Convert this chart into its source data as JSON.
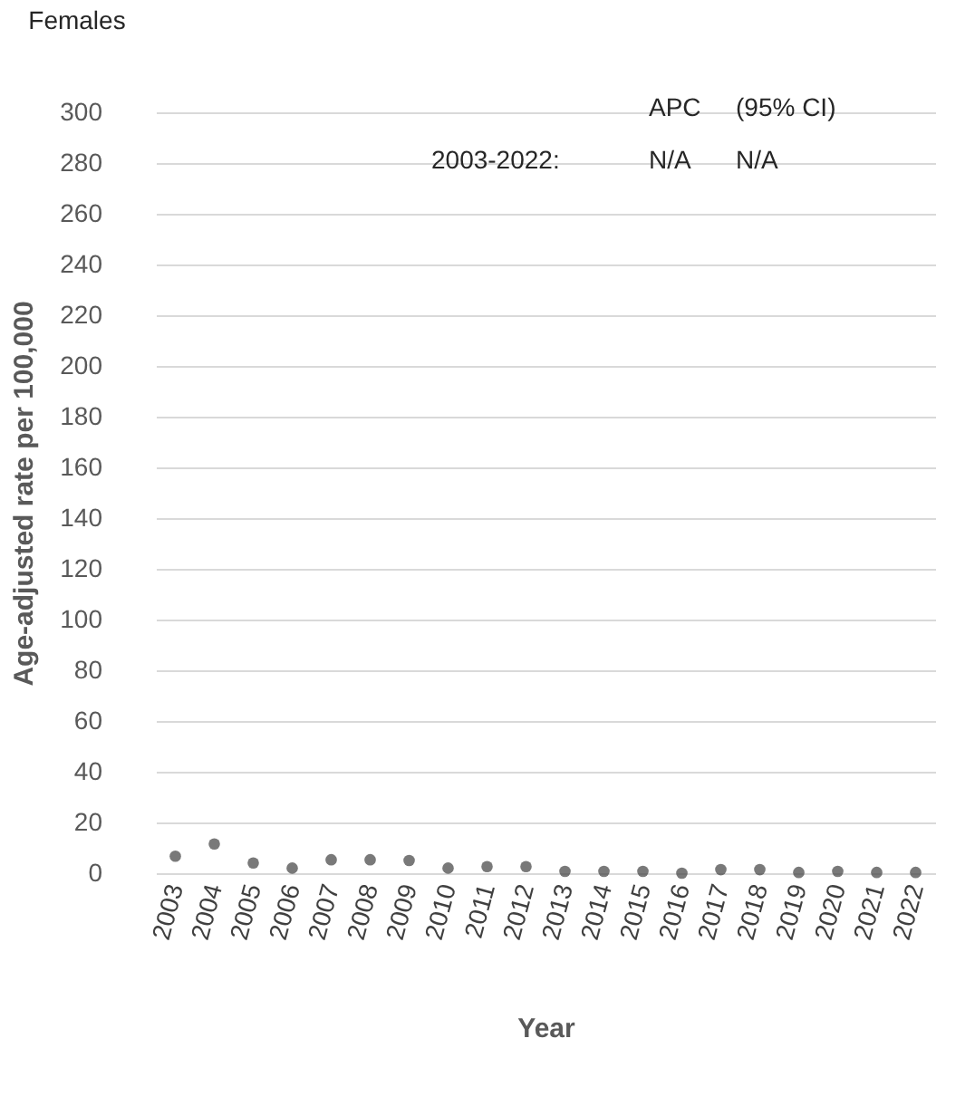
{
  "chart_data": {
    "type": "scatter",
    "title": "Females",
    "xlabel": "Year",
    "ylabel": "Age-adjusted rate per 100,000",
    "categories": [
      "2003",
      "2004",
      "2005",
      "2006",
      "2007",
      "2008",
      "2009",
      "2010",
      "2011",
      "2012",
      "2013",
      "2014",
      "2015",
      "2016",
      "2017",
      "2018",
      "2019",
      "2020",
      "2021",
      "2022"
    ],
    "series": [
      {
        "color": "#404040",
        "values": [
          6.7,
          11.5,
          4,
          2,
          5.3,
          5.3,
          5,
          2,
          2.6,
          2.6,
          0.7,
          0.7,
          0.7,
          0,
          1.4,
          1.4,
          0.3,
          0.7,
          0.3,
          0.3
        ]
      }
    ],
    "ylim": [
      0,
      300
    ],
    "yticks": [
      0,
      20,
      40,
      60,
      80,
      100,
      120,
      140,
      160,
      180,
      200,
      220,
      240,
      260,
      280,
      300
    ],
    "grid": "y",
    "marker": "circle",
    "annotations": [
      "APC",
      "(95% CI)",
      "2003-2022:",
      "N/A",
      "N/A"
    ]
  }
}
